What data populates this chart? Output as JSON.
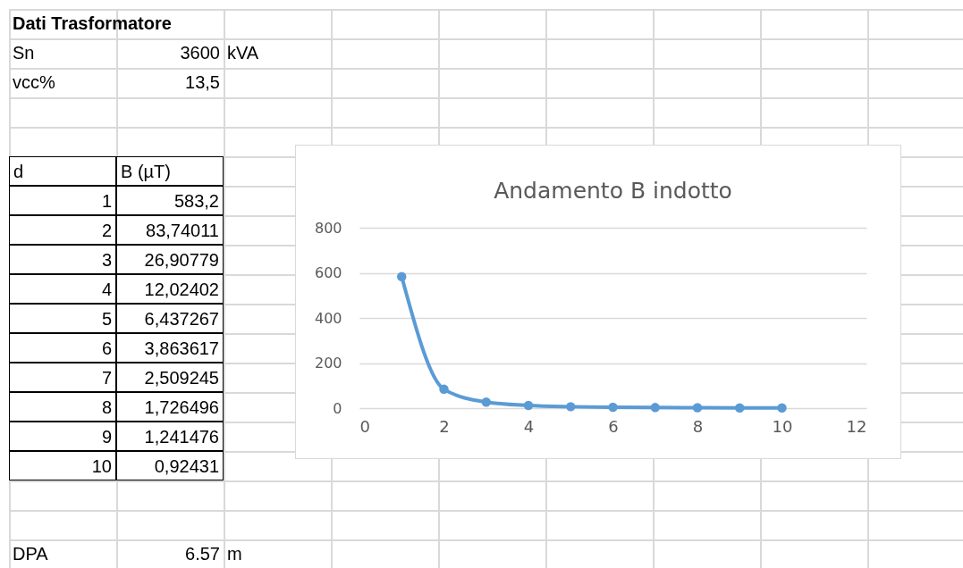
{
  "chart_data": {
    "type": "line",
    "title": "Andamento B indotto",
    "x": [
      1,
      2,
      3,
      4,
      5,
      6,
      7,
      8,
      9,
      10
    ],
    "series": [
      {
        "color": "#5b9bd5",
        "values": [
          583.2,
          83.74011,
          26.90779,
          12.02402,
          6.437267,
          3.863617,
          2.509245,
          1.726496,
          1.241476,
          0.92431
        ]
      }
    ],
    "xlim": [
      0,
      12
    ],
    "xticks": [
      0,
      2,
      4,
      6,
      8,
      10,
      12
    ],
    "ylim": [
      0,
      800
    ],
    "yticks": [
      0,
      200,
      400,
      600,
      800
    ],
    "grid": "y",
    "marker": "circle",
    "line_style": "solid",
    "legend": false,
    "annotations": [
      "Dati Trasformatore",
      "Sn",
      "3600",
      "kVA",
      "vcc%",
      "13,5",
      "d",
      "B (µT)",
      "DPA",
      "6.57",
      "m",
      "1",
      "583,2",
      "2",
      "83,74011",
      "3",
      "26,90779",
      "4",
      "12,02402",
      "5",
      "6,437267",
      "6",
      "3,863617",
      "7",
      "2,509245",
      "8",
      "1,726496",
      "9",
      "1,241476",
      "10",
      "0,92431"
    ]
  }
}
